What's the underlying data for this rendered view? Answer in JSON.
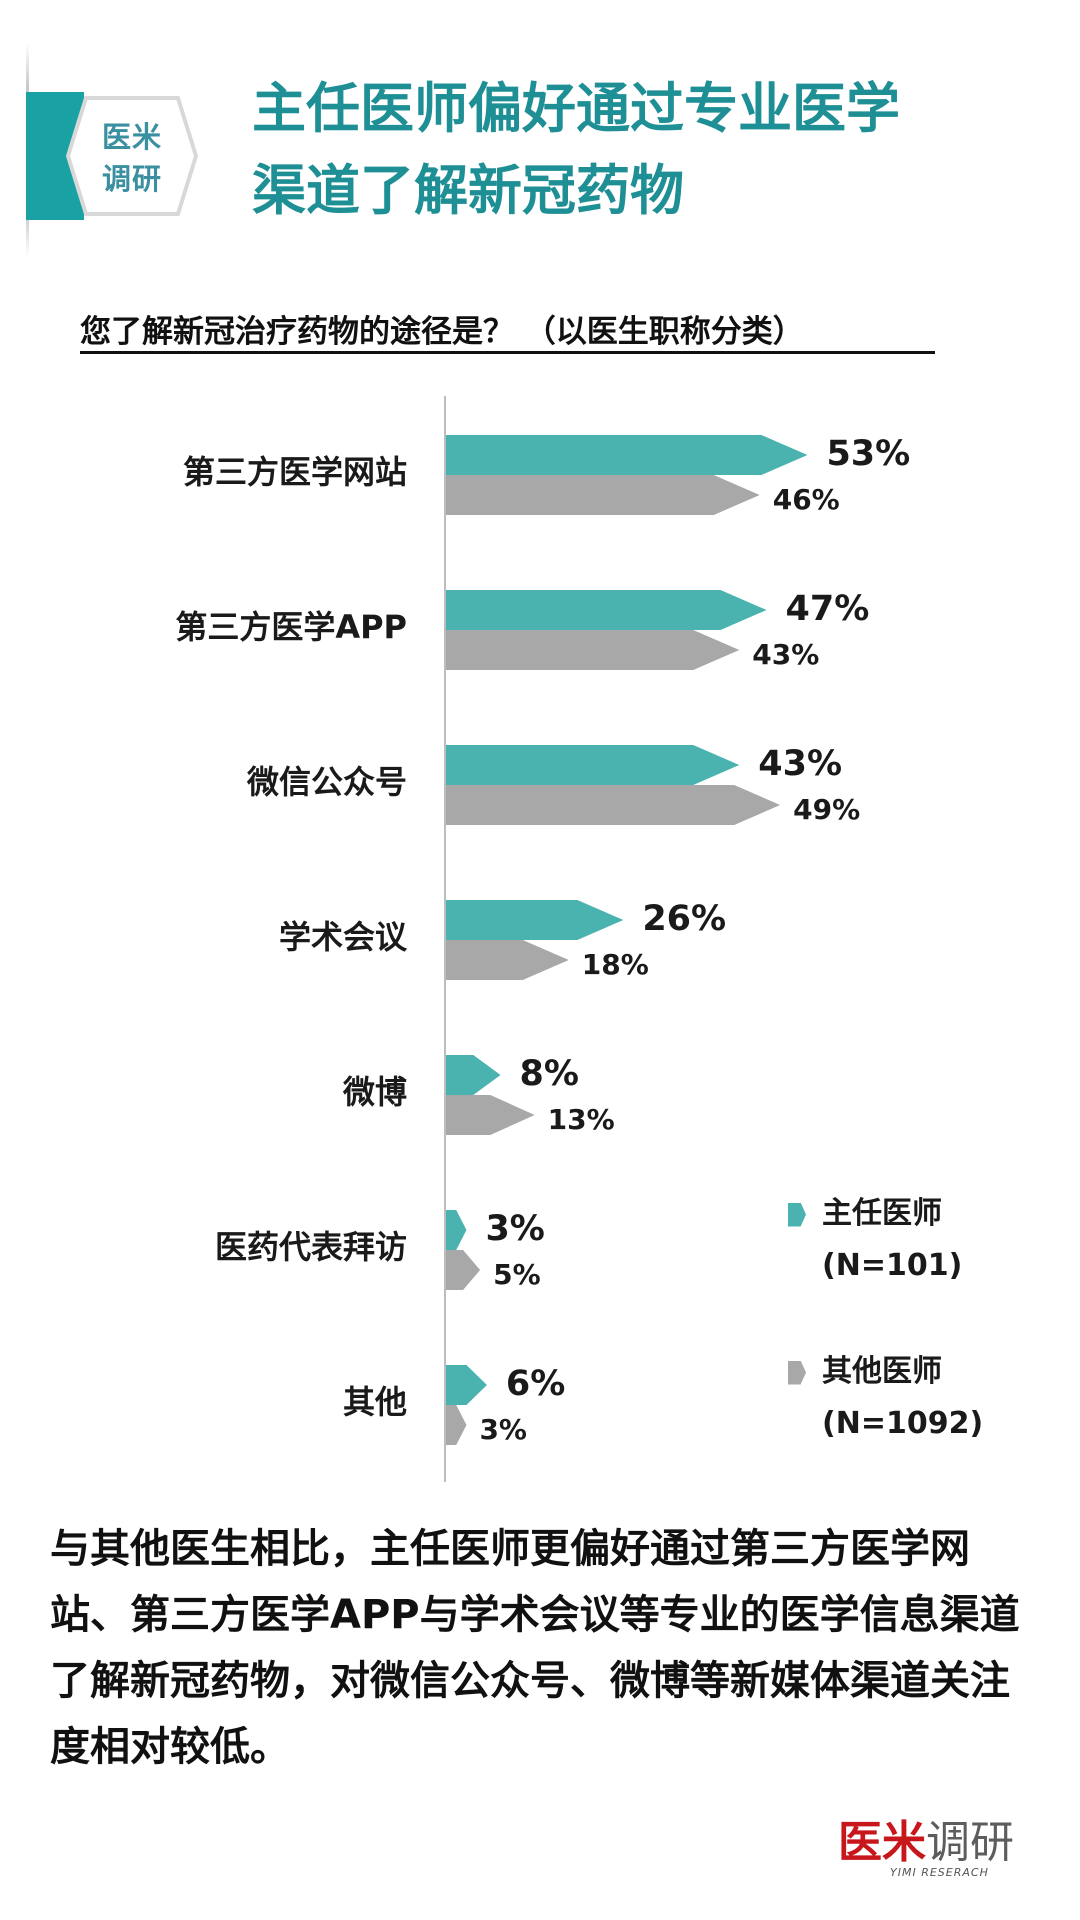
{
  "header": {
    "badge_line1": "医米",
    "badge_line2": "调研",
    "title_line1": "主任医师偏好通过专业医学",
    "title_line2": "渠道了解新冠药物",
    "question": "您了解新冠治疗药物的途径是？ （以医生职称分类）"
  },
  "chart_data": {
    "type": "bar",
    "orientation": "horizontal",
    "categories": [
      "第三方医学网站",
      "第三方医学APP",
      "微信公众号",
      "学术会议",
      "微博",
      "医药代表拜访",
      "其他"
    ],
    "series": [
      {
        "name": "主任医师",
        "n_label": "(N=101)",
        "color": "#4ab3b0",
        "values": [
          53,
          47,
          43,
          26,
          8,
          3,
          6
        ],
        "labels": [
          "53%",
          "47%",
          "43%",
          "26%",
          "8%",
          "3%",
          "6%"
        ]
      },
      {
        "name": "其他医师",
        "n_label": "(N=1092)",
        "color": "#a8a8a8",
        "values": [
          46,
          43,
          49,
          18,
          13,
          5,
          3
        ],
        "labels": [
          "46%",
          "43%",
          "49%",
          "18%",
          "13%",
          "5%",
          "3%"
        ]
      }
    ],
    "value_unit": "%",
    "xlim": [
      0,
      60
    ],
    "grid": false,
    "legend_position": "right"
  },
  "summary": "与其他医生相比，主任医师更偏好通过第三方医学网站、第三方医学APP与学术会议等专业的医学信息渠道了解新冠药物，对微信公众号、微博等新媒体渠道关注度相对较低。",
  "footer": {
    "logo_part1": "医米",
    "logo_part2": "调研",
    "logo_sub": "YIMI RESERACH"
  }
}
